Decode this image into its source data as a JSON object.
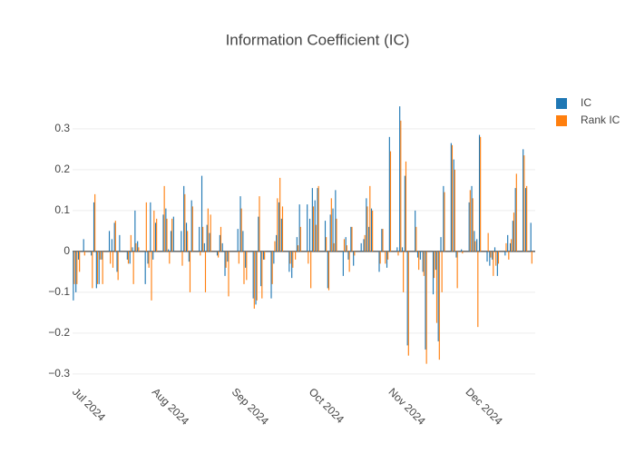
{
  "chart_data": {
    "type": "bar",
    "title": "Information Coefficient (IC)",
    "x": [
      "2024-07-01",
      "2024-07-02",
      "2024-07-03",
      "2024-07-05",
      "2024-07-08",
      "2024-07-09",
      "2024-07-10",
      "2024-07-11",
      "2024-07-12",
      "2024-07-15",
      "2024-07-16",
      "2024-07-17",
      "2024-07-18",
      "2024-07-19",
      "2024-07-22",
      "2024-07-23",
      "2024-07-24",
      "2024-07-25",
      "2024-07-26",
      "2024-07-29",
      "2024-07-30",
      "2024-07-31",
      "2024-08-01",
      "2024-08-02",
      "2024-08-05",
      "2024-08-06",
      "2024-08-07",
      "2024-08-08",
      "2024-08-09",
      "2024-08-12",
      "2024-08-13",
      "2024-08-14",
      "2024-08-15",
      "2024-08-16",
      "2024-08-19",
      "2024-08-20",
      "2024-08-21",
      "2024-08-22",
      "2024-08-23",
      "2024-08-26",
      "2024-08-27",
      "2024-08-28",
      "2024-08-29",
      "2024-08-30",
      "2024-09-03",
      "2024-09-04",
      "2024-09-05",
      "2024-09-06",
      "2024-09-09",
      "2024-09-10",
      "2024-09-11",
      "2024-09-12",
      "2024-09-13",
      "2024-09-16",
      "2024-09-17",
      "2024-09-18",
      "2024-09-19",
      "2024-09-20",
      "2024-09-23",
      "2024-09-24",
      "2024-09-25",
      "2024-09-26",
      "2024-09-27",
      "2024-09-30",
      "2024-10-01",
      "2024-10-02",
      "2024-10-03",
      "2024-10-04",
      "2024-10-07",
      "2024-10-08",
      "2024-10-09",
      "2024-10-10",
      "2024-10-11",
      "2024-10-14",
      "2024-10-15",
      "2024-10-16",
      "2024-10-17",
      "2024-10-18",
      "2024-10-21",
      "2024-10-22",
      "2024-10-23",
      "2024-10-24",
      "2024-10-25",
      "2024-10-28",
      "2024-10-29",
      "2024-10-30",
      "2024-10-31",
      "2024-11-01",
      "2024-11-04",
      "2024-11-05",
      "2024-11-06",
      "2024-11-07",
      "2024-11-08",
      "2024-11-11",
      "2024-11-12",
      "2024-11-13",
      "2024-11-14",
      "2024-11-15",
      "2024-11-18",
      "2024-11-19",
      "2024-11-20",
      "2024-11-21",
      "2024-11-22",
      "2024-11-25",
      "2024-11-26",
      "2024-11-27",
      "2024-11-29",
      "2024-12-02",
      "2024-12-03",
      "2024-12-04",
      "2024-12-05",
      "2024-12-06",
      "2024-12-09",
      "2024-12-10",
      "2024-12-11",
      "2024-12-12",
      "2024-12-13",
      "2024-12-16",
      "2024-12-17",
      "2024-12-18",
      "2024-12-19",
      "2024-12-20",
      "2024-12-23",
      "2024-12-24",
      "2024-12-26"
    ],
    "series": [
      {
        "name": "IC",
        "color": "#1f77b4",
        "values": [
          -0.12,
          -0.1,
          -0.02,
          0.03,
          -0.01,
          0.12,
          -0.09,
          -0.08,
          -0.02,
          0.05,
          0.03,
          0.07,
          -0.05,
          0.04,
          -0.02,
          -0.03,
          0.01,
          0.1,
          0.025,
          -0.08,
          -0.03,
          0.12,
          -0.02,
          0.07,
          0.09,
          0.105,
          0.005,
          0.05,
          0.085,
          0.05,
          0.16,
          0.07,
          -0.025,
          0.125,
          0.06,
          0.185,
          0.02,
          0.065,
          0.045,
          -0.01,
          0.04,
          0.02,
          -0.06,
          -0.025,
          0.055,
          0.135,
          0.05,
          -0.04,
          -0.115,
          -0.13,
          0.085,
          -0.085,
          -0.02,
          -0.115,
          -0.03,
          0.04,
          0.12,
          0.08,
          -0.05,
          -0.065,
          0.0,
          0.035,
          0.115,
          0.115,
          0.08,
          0.155,
          0.125,
          0.155,
          0.075,
          -0.09,
          0.09,
          0.105,
          0.15,
          -0.06,
          0.035,
          -0.02,
          0.06,
          -0.035,
          0.02,
          0.03,
          0.13,
          0.06,
          0.105,
          -0.05,
          0.055,
          0.0,
          -0.04,
          0.28,
          0.01,
          0.355,
          0.01,
          0.185,
          -0.23,
          0.1,
          -0.015,
          -0.02,
          -0.05,
          -0.24,
          -0.105,
          -0.045,
          -0.22,
          0.035,
          0.16,
          0.265,
          0.225,
          -0.015,
          0.005,
          0.12,
          0.16,
          0.05,
          0.03,
          0.285,
          -0.025,
          -0.035,
          -0.02,
          0.01,
          -0.06,
          -0.01,
          0.04,
          0.02,
          0.075,
          0.155,
          0.25,
          0.155,
          0.07
        ]
      },
      {
        "name": "Rank IC",
        "color": "#ff7f0e",
        "values": [
          -0.08,
          -0.08,
          -0.05,
          -0.01,
          -0.09,
          0.14,
          -0.08,
          -0.02,
          -0.08,
          -0.03,
          -0.04,
          0.075,
          -0.07,
          0.0,
          -0.03,
          0.04,
          -0.08,
          0.02,
          0.01,
          0.12,
          -0.04,
          -0.12,
          0.1,
          0.08,
          0.16,
          0.08,
          -0.03,
          0.08,
          0.0,
          -0.035,
          0.14,
          0.05,
          -0.1,
          0.11,
          -0.01,
          0.06,
          -0.1,
          0.105,
          0.09,
          -0.015,
          0.06,
          0.0,
          -0.04,
          -0.11,
          -0.03,
          0.105,
          -0.08,
          -0.07,
          -0.14,
          -0.12,
          0.135,
          -0.115,
          -0.02,
          -0.08,
          0.025,
          0.13,
          0.18,
          0.11,
          -0.03,
          -0.04,
          -0.02,
          0.015,
          0.06,
          -0.03,
          -0.09,
          0.11,
          0.065,
          0.16,
          0.035,
          -0.095,
          0.13,
          0.02,
          0.08,
          0.03,
          0.015,
          -0.05,
          0.06,
          -0.01,
          0.0,
          0.04,
          0.11,
          0.16,
          0.1,
          -0.03,
          0.055,
          -0.03,
          -0.02,
          0.245,
          -0.01,
          0.32,
          -0.1,
          0.22,
          -0.255,
          0.06,
          -0.045,
          0.0,
          -0.06,
          -0.275,
          -0.065,
          -0.175,
          -0.265,
          -0.1,
          0.145,
          0.26,
          0.2,
          -0.09,
          -0.005,
          0.15,
          0.13,
          0.025,
          -0.185,
          0.28,
          0.045,
          -0.015,
          -0.06,
          -0.035,
          -0.03,
          0.02,
          -0.02,
          0.03,
          0.095,
          0.19,
          0.235,
          0.16,
          -0.03
        ]
      }
    ],
    "xlim": [
      "2024-06-30T12:00",
      "2024-12-27T12:00"
    ],
    "xticks": [
      {
        "value": "2024-07-01",
        "label": "Jul 2024"
      },
      {
        "value": "2024-08-01",
        "label": "Aug 2024"
      },
      {
        "value": "2024-09-01",
        "label": "Sep 2024"
      },
      {
        "value": "2024-10-01",
        "label": "Oct 2024"
      },
      {
        "value": "2024-11-01",
        "label": "Nov 2024"
      },
      {
        "value": "2024-12-01",
        "label": "Dec 2024"
      }
    ],
    "ylim": [
      -0.318,
      0.393
    ],
    "yticks": [
      {
        "value": -0.3,
        "label": "−0.3"
      },
      {
        "value": -0.2,
        "label": "−0.2"
      },
      {
        "value": -0.1,
        "label": "−0.1"
      },
      0,
      0.1,
      0.2,
      0.3
    ],
    "grid": true,
    "legend": "right"
  }
}
